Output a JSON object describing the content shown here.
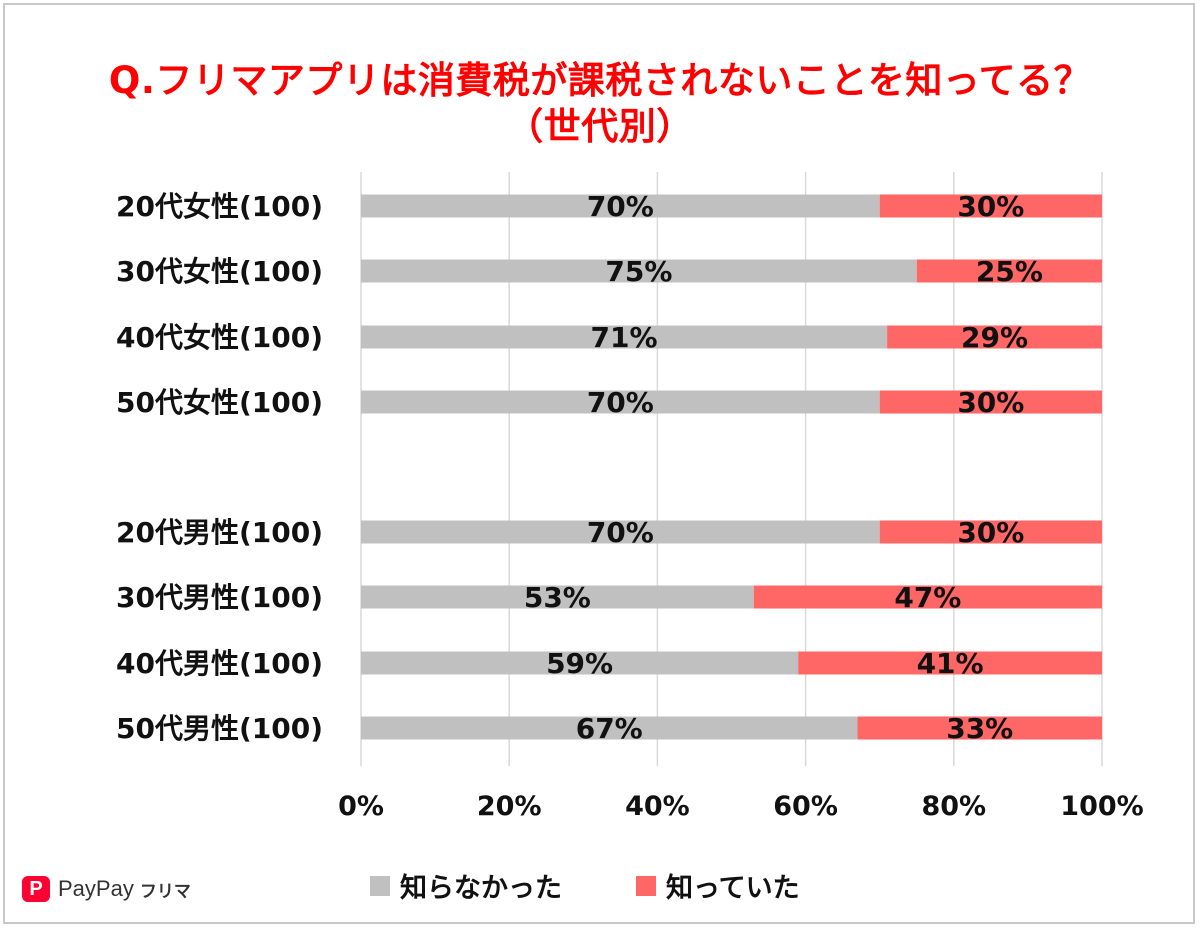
{
  "title_line1": "Q.フリマアプリは消費税が課税されないことを知ってる？",
  "title_line2": "（世代別）",
  "brand": {
    "mark": "P",
    "name": "PayPay",
    "sub": "フリマ"
  },
  "colors": {
    "not_known": "#c0c0c0",
    "known": "#ff6666",
    "grid": "#d9d9d9"
  },
  "chart_data": {
    "type": "bar",
    "orientation": "horizontal",
    "stacked": true,
    "percent": true,
    "categories": [
      "20代女性(100)",
      "30代女性(100)",
      "40代女性(100)",
      "50代女性(100)",
      "20代男性(100)",
      "30代男性(100)",
      "40代男性(100)",
      "50代男性(100)"
    ],
    "series": [
      {
        "name": "知らなかった",
        "values": [
          70,
          75,
          71,
          70,
          70,
          53,
          59,
          67
        ]
      },
      {
        "name": "知っていた",
        "values": [
          30,
          25,
          29,
          30,
          30,
          47,
          41,
          33
        ]
      }
    ],
    "xlim": [
      0,
      100
    ],
    "xticks": [
      "0%",
      "20%",
      "40%",
      "60%",
      "80%",
      "100%"
    ],
    "grid": true,
    "legend": "bottom"
  }
}
